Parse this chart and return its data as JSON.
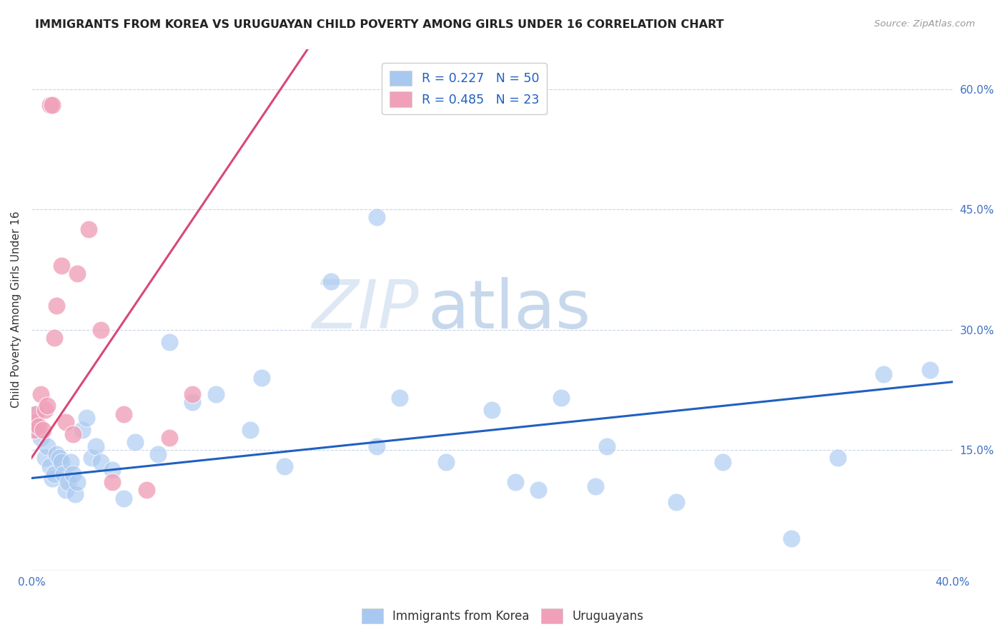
{
  "title": "IMMIGRANTS FROM KOREA VS URUGUAYAN CHILD POVERTY AMONG GIRLS UNDER 16 CORRELATION CHART",
  "source": "Source: ZipAtlas.com",
  "ylabel": "Child Poverty Among Girls Under 16",
  "xlabel": "",
  "xlim": [
    0.0,
    0.4
  ],
  "ylim": [
    0.0,
    0.65
  ],
  "xticks": [
    0.0,
    0.05,
    0.1,
    0.15,
    0.2,
    0.25,
    0.3,
    0.35,
    0.4
  ],
  "xticklabels": [
    "0.0%",
    "",
    "",
    "",
    "",
    "",
    "",
    "",
    "40.0%"
  ],
  "yticks_right": [
    0.15,
    0.3,
    0.45,
    0.6
  ],
  "yticklabels_right": [
    "15.0%",
    "30.0%",
    "45.0%",
    "60.0%"
  ],
  "blue_color": "#a8c8f0",
  "pink_color": "#f0a0b8",
  "line_blue": "#2060c0",
  "line_pink": "#d84878",
  "watermark_zip": "ZIP",
  "watermark_atlas": "atlas",
  "background_color": "#ffffff",
  "grid_color": "#c8d4e8",
  "blue_scatter_x": [
    0.001,
    0.002,
    0.004,
    0.006,
    0.007,
    0.008,
    0.009,
    0.01,
    0.011,
    0.012,
    0.013,
    0.014,
    0.015,
    0.016,
    0.017,
    0.018,
    0.019,
    0.02,
    0.022,
    0.024,
    0.026,
    0.028,
    0.03,
    0.035,
    0.04,
    0.045,
    0.055,
    0.06,
    0.07,
    0.08,
    0.095,
    0.1,
    0.11,
    0.13,
    0.15,
    0.16,
    0.18,
    0.2,
    0.21,
    0.22,
    0.23,
    0.245,
    0.25,
    0.28,
    0.3,
    0.33,
    0.35,
    0.37,
    0.39,
    0.15
  ],
  "blue_scatter_y": [
    0.195,
    0.175,
    0.165,
    0.14,
    0.155,
    0.13,
    0.115,
    0.12,
    0.145,
    0.14,
    0.135,
    0.12,
    0.1,
    0.11,
    0.135,
    0.12,
    0.095,
    0.11,
    0.175,
    0.19,
    0.14,
    0.155,
    0.135,
    0.125,
    0.09,
    0.16,
    0.145,
    0.285,
    0.21,
    0.22,
    0.175,
    0.24,
    0.13,
    0.36,
    0.155,
    0.215,
    0.135,
    0.2,
    0.11,
    0.1,
    0.215,
    0.105,
    0.155,
    0.085,
    0.135,
    0.04,
    0.14,
    0.245,
    0.25,
    0.44
  ],
  "pink_scatter_x": [
    0.001,
    0.001,
    0.002,
    0.003,
    0.004,
    0.005,
    0.006,
    0.007,
    0.008,
    0.009,
    0.01,
    0.011,
    0.013,
    0.015,
    0.018,
    0.02,
    0.025,
    0.03,
    0.035,
    0.04,
    0.05,
    0.06,
    0.07
  ],
  "pink_scatter_y": [
    0.185,
    0.175,
    0.195,
    0.18,
    0.22,
    0.175,
    0.2,
    0.205,
    0.58,
    0.58,
    0.29,
    0.33,
    0.38,
    0.185,
    0.17,
    0.37,
    0.425,
    0.3,
    0.11,
    0.195,
    0.1,
    0.165,
    0.22
  ],
  "pink_line_x": [
    0.0,
    0.12
  ],
  "pink_line_y": [
    0.14,
    0.65
  ],
  "blue_line_x": [
    0.0,
    0.4
  ],
  "blue_line_y": [
    0.115,
    0.235
  ]
}
